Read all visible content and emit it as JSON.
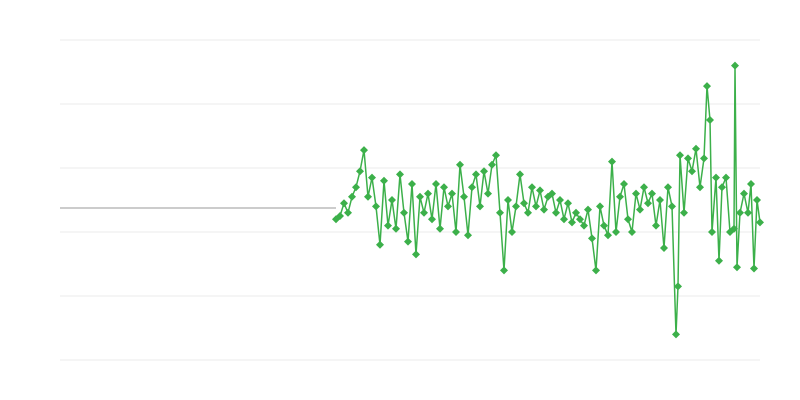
{
  "chart_data": {
    "type": "line",
    "xlim": [
      0,
      700
    ],
    "ylim": [
      -2,
      3
    ],
    "yticks": [
      -2,
      -1,
      0,
      1,
      2,
      3
    ],
    "grid": true,
    "tick_labels": false,
    "series": [
      {
        "color": "#999999",
        "marker": "none",
        "x": [
          0,
          276
        ],
        "values": [
          0.375,
          0.375
        ]
      },
      {
        "color": "#3cb04a",
        "marker": "diamond",
        "x": [
          276,
          280,
          284,
          288,
          292,
          296,
          300,
          304,
          308,
          312,
          316,
          320,
          324,
          328,
          332,
          336,
          340,
          344,
          348,
          352,
          356,
          360,
          364,
          368,
          372,
          376,
          380,
          384,
          388,
          392,
          396,
          400,
          404,
          408,
          412,
          416,
          420,
          424,
          428,
          432,
          436,
          440,
          444,
          448,
          452,
          456,
          460,
          464,
          468,
          472,
          476,
          480,
          484,
          488,
          492,
          496,
          500,
          504,
          508,
          512,
          516,
          520,
          524,
          528,
          532,
          536,
          540,
          544,
          548,
          552,
          556,
          560,
          564,
          568,
          572,
          576,
          580,
          584,
          588,
          592,
          596,
          600,
          604,
          608,
          612,
          616,
          618,
          620,
          624,
          628,
          632,
          636,
          640,
          644,
          647,
          650,
          652,
          656,
          659,
          662,
          666,
          670,
          674,
          675,
          677,
          680,
          684,
          688,
          691,
          694,
          697,
          700
        ],
        "values": [
          0.2,
          0.25,
          0.45,
          0.3,
          0.55,
          0.7,
          0.95,
          1.28,
          0.55,
          0.85,
          0.4,
          -0.2,
          0.8,
          0.1,
          0.5,
          0.05,
          0.9,
          0.3,
          -0.15,
          0.75,
          -0.35,
          0.55,
          0.3,
          0.6,
          0.2,
          0.75,
          0.05,
          0.7,
          0.4,
          0.6,
          0.0,
          1.05,
          0.55,
          -0.05,
          0.7,
          0.9,
          0.4,
          0.95,
          0.6,
          1.05,
          1.2,
          0.3,
          -0.6,
          0.5,
          0.0,
          0.4,
          0.9,
          0.45,
          0.3,
          0.7,
          0.4,
          0.65,
          0.35,
          0.55,
          0.6,
          0.3,
          0.5,
          0.2,
          0.45,
          0.15,
          0.3,
          0.2,
          0.1,
          0.35,
          -0.1,
          -0.6,
          0.4,
          0.1,
          -0.05,
          1.1,
          0.0,
          0.55,
          0.75,
          0.2,
          0.0,
          0.6,
          0.35,
          0.7,
          0.45,
          0.6,
          0.1,
          0.5,
          -0.25,
          0.7,
          0.4,
          -1.6,
          -0.85,
          1.2,
          0.3,
          1.15,
          0.95,
          1.3,
          0.7,
          1.15,
          2.28,
          1.75,
          0.0,
          0.85,
          -0.45,
          0.7,
          0.85,
          0.0,
          0.05,
          2.6,
          -0.55,
          0.3,
          0.6,
          0.3,
          0.75,
          -0.57,
          0.5,
          0.15
        ]
      }
    ]
  }
}
